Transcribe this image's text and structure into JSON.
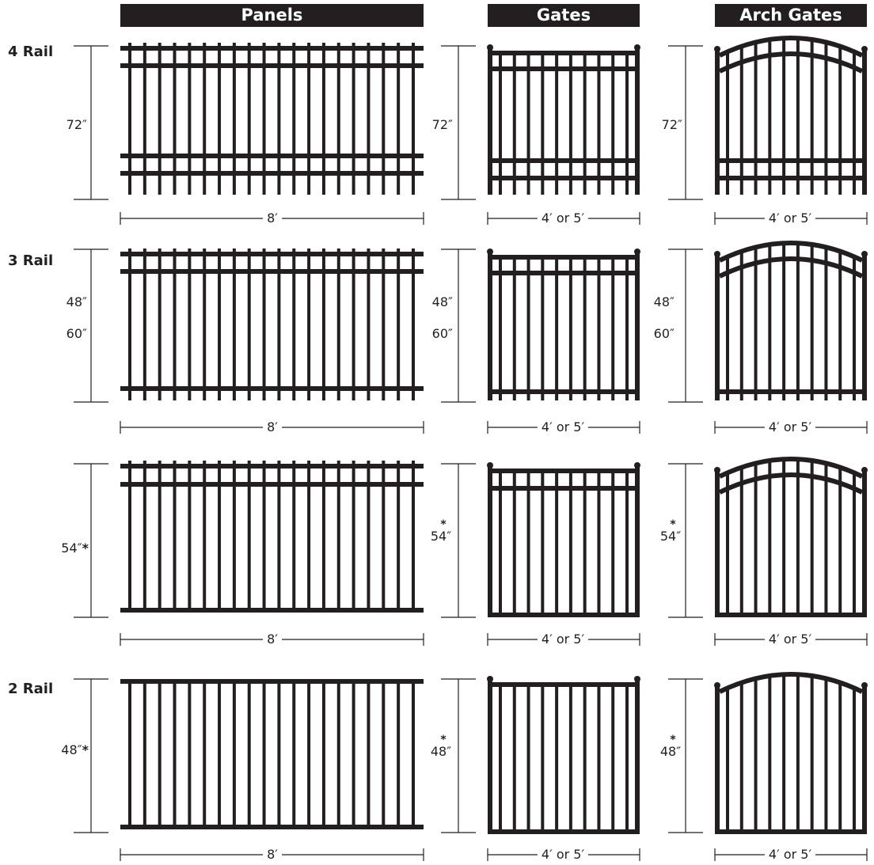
{
  "columns": [
    {
      "key": "panels",
      "label": "Panels"
    },
    {
      "key": "gates",
      "label": "Gates"
    },
    {
      "key": "arch_gates",
      "label": "Arch Gates"
    }
  ],
  "rows": [
    {
      "label": "4 Rail",
      "heights": [
        "72″"
      ],
      "panel_height": "72″",
      "gate_height": "72″",
      "arch_height": "72″",
      "panel_width": "8′",
      "gate_width": "4′ or 5′",
      "arch_width": "4′ or 5′"
    },
    {
      "label": "3 Rail",
      "heights": [
        "48″",
        "60″"
      ],
      "panel_height": "48″ / 60″",
      "gate_height": "48″ / 60″",
      "arch_height": "48″ / 60″",
      "panel_width": "8′",
      "gate_width": "4′ or 5′",
      "arch_width": "4′ or 5′"
    },
    {
      "label": "",
      "heights": [
        "54″"
      ],
      "asterisk": "*",
      "panel_width": "8′",
      "gate_width": "4′ or 5′",
      "arch_width": "4′ or 5′"
    },
    {
      "label": "2 Rail",
      "heights": [
        "48″"
      ],
      "asterisk": "*",
      "panel_width": "8′",
      "gate_width": "4′ or 5′",
      "arch_width": "4′ or 5′"
    }
  ],
  "colors": {
    "ink": "#231f20",
    "background": "#ffffff"
  }
}
